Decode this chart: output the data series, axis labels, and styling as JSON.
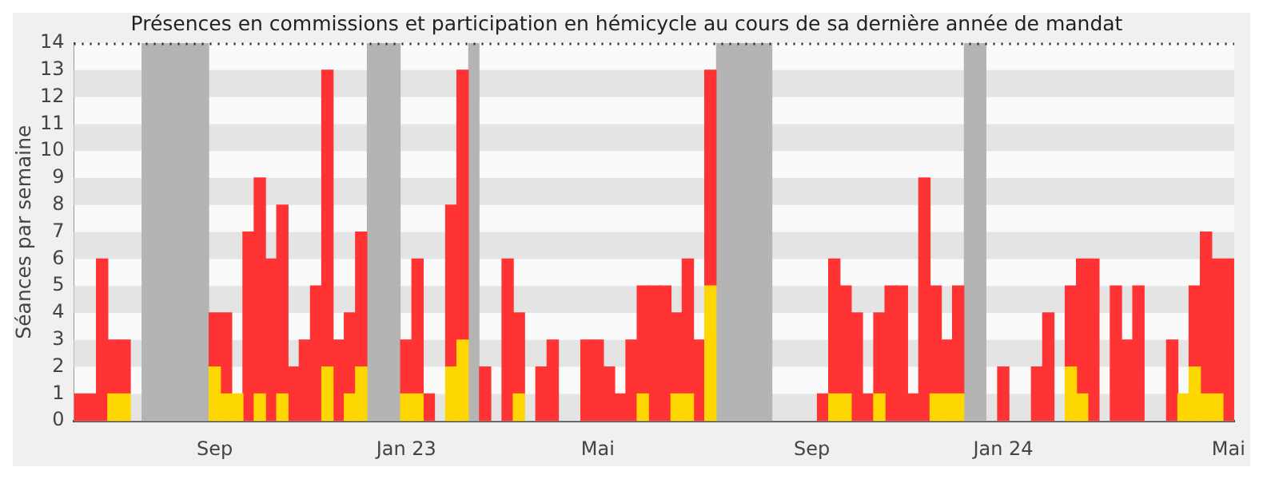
{
  "chart_data": {
    "type": "bar",
    "title": "Présences en commissions et participation en hémicycle au cours de sa dernière année de mandat",
    "ylabel": "Séances par semaine",
    "categories": [
      null,
      null,
      null,
      null,
      null,
      null,
      null,
      null,
      null,
      null,
      null,
      null,
      "Sep",
      null,
      null,
      null,
      null,
      null,
      null,
      null,
      null,
      null,
      null,
      null,
      null,
      null,
      null,
      null,
      null,
      "Jan 23",
      null,
      null,
      null,
      null,
      null,
      null,
      null,
      null,
      null,
      null,
      null,
      null,
      null,
      null,
      null,
      null,
      "Mai",
      null,
      null,
      null,
      null,
      null,
      null,
      null,
      null,
      null,
      null,
      null,
      null,
      null,
      null,
      null,
      null,
      null,
      null,
      "Sep",
      null,
      null,
      null,
      null,
      null,
      null,
      null,
      null,
      null,
      null,
      null,
      null,
      null,
      null,
      null,
      null,
      "Jan 24",
      null,
      null,
      null,
      null,
      null,
      null,
      null,
      null,
      null,
      null,
      null,
      null,
      null,
      null,
      null,
      null,
      null,
      null,
      null,
      "Mai"
    ],
    "stacked": true,
    "series": [
      {
        "color": "#ffd700",
        "values": [
          null,
          null,
          null,
          1,
          1,
          null,
          null,
          null,
          null,
          null,
          null,
          null,
          2,
          1,
          1,
          null,
          1,
          null,
          1,
          null,
          null,
          null,
          2,
          null,
          1,
          2,
          null,
          null,
          null,
          1,
          1,
          null,
          null,
          2,
          3,
          null,
          null,
          null,
          null,
          1,
          null,
          null,
          null,
          null,
          null,
          null,
          null,
          null,
          null,
          null,
          1,
          null,
          null,
          1,
          1,
          null,
          5,
          null,
          null,
          null,
          null,
          null,
          null,
          null,
          null,
          null,
          null,
          1,
          1,
          null,
          null,
          1,
          null,
          null,
          null,
          null,
          1,
          1,
          1,
          null,
          null,
          null,
          null,
          null,
          null,
          null,
          null,
          null,
          2,
          1,
          null,
          null,
          null,
          null,
          null,
          null,
          null,
          null,
          1,
          2,
          1,
          1,
          null
        ]
      },
      {
        "color": "#ff3333",
        "values": [
          1,
          1,
          6,
          2,
          2,
          null,
          null,
          null,
          null,
          null,
          null,
          null,
          2,
          3,
          null,
          7,
          8,
          6,
          7,
          2,
          3,
          5,
          11,
          3,
          3,
          5,
          null,
          null,
          null,
          2,
          5,
          1,
          null,
          6,
          10,
          null,
          2,
          null,
          6,
          3,
          null,
          2,
          3,
          null,
          null,
          3,
          3,
          2,
          1,
          3,
          4,
          5,
          5,
          3,
          5,
          3,
          8,
          null,
          null,
          null,
          null,
          null,
          null,
          null,
          null,
          null,
          1,
          5,
          4,
          4,
          1,
          3,
          5,
          5,
          1,
          9,
          4,
          2,
          4,
          null,
          null,
          null,
          2,
          null,
          null,
          2,
          4,
          null,
          3,
          5,
          6,
          null,
          5,
          3,
          5,
          null,
          null,
          3,
          null,
          3,
          6,
          5,
          6
        ]
      }
    ],
    "bands": [
      {
        "axis": "y",
        "from": 0,
        "to": 1,
        "color": "#e4e4e4"
      },
      {
        "axis": "y",
        "from": 2,
        "to": 3,
        "color": "#e4e4e4"
      },
      {
        "axis": "y",
        "from": 4,
        "to": 5,
        "color": "#e4e4e4"
      },
      {
        "axis": "y",
        "from": 6,
        "to": 7,
        "color": "#e4e4e4"
      },
      {
        "axis": "y",
        "from": 8,
        "to": 9,
        "color": "#e4e4e4"
      },
      {
        "axis": "y",
        "from": 10,
        "to": 11,
        "color": "#e4e4e4"
      },
      {
        "axis": "y",
        "from": 12,
        "to": 13,
        "color": "#e4e4e4"
      }
    ],
    "ylim": [
      0,
      14
    ],
    "yticks": [
      0,
      1,
      2,
      3,
      4,
      5,
      6,
      7,
      8,
      9,
      10,
      11,
      12,
      13,
      14
    ],
    "legend": false
  }
}
